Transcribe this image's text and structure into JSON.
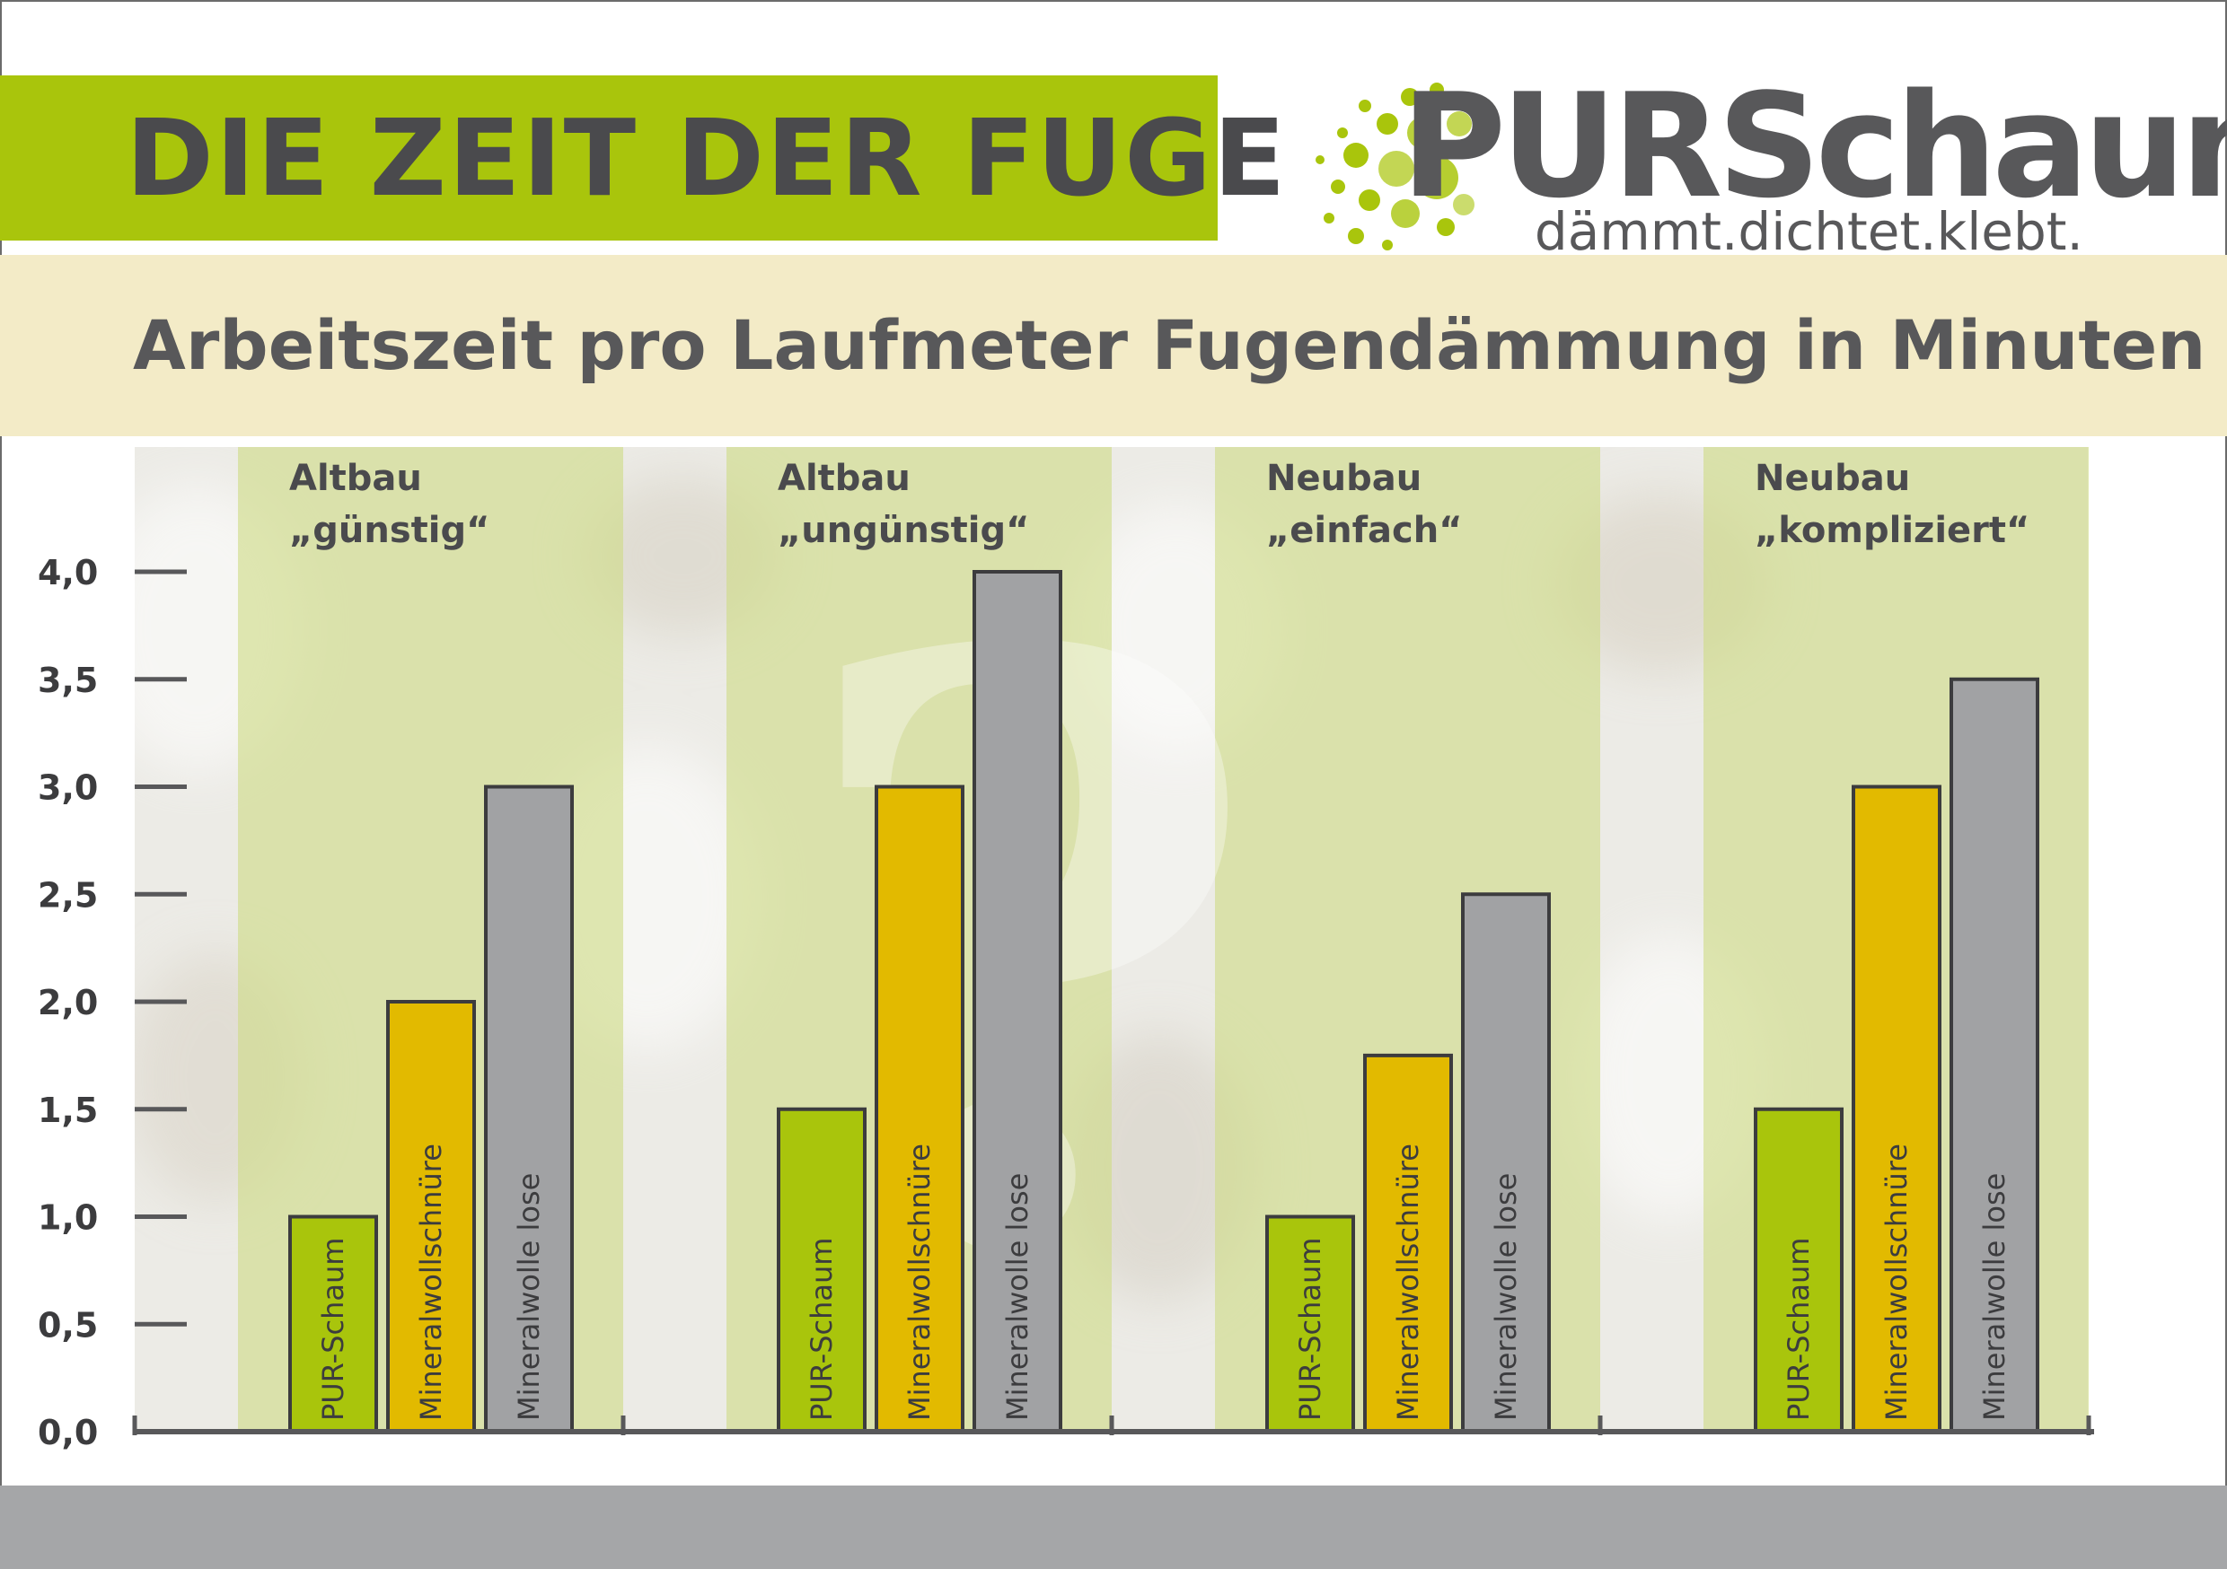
{
  "header": {
    "title": "DIE ZEIT DER FUGE",
    "subtitle": "Arbeitszeit pro Laufmeter Fugendämmung in Minuten"
  },
  "logo": {
    "word_part1": "PUR",
    "word_part2": "Schaum",
    "tagline": "dämmt.dichtet.klebt."
  },
  "colors": {
    "brand_green": "#a9c50c",
    "cream": "#f3ebc7",
    "gray_band": "#a5a6a8",
    "series_pur": "#a9c50c",
    "series_mineral_schnuere": "#e2ba00",
    "series_mineral_lose": "#a1a2a4",
    "axis": "#58585a"
  },
  "chart_data": {
    "type": "bar",
    "title": "Arbeitszeit pro Laufmeter Fugendämmung in Minuten",
    "categories": [
      [
        "Altbau",
        "„günstig“"
      ],
      [
        "Altbau",
        "„ungünstig“"
      ],
      [
        "Neubau",
        "„einfach“"
      ],
      [
        "Neubau",
        "„kompliziert“"
      ]
    ],
    "series": [
      {
        "name": "PUR-Schaum",
        "values": [
          1.0,
          1.5,
          1.0,
          1.5
        ]
      },
      {
        "name": "Mineralwollschnüre",
        "values": [
          2.0,
          3.0,
          1.75,
          3.0
        ]
      },
      {
        "name": "Mineralwolle lose",
        "values": [
          3.0,
          4.0,
          2.5,
          3.5
        ]
      }
    ],
    "ylim": [
      0,
      4
    ],
    "yticks": [
      "0,0",
      "0,5",
      "1,0",
      "1,5",
      "2,0",
      "2,5",
      "3,0",
      "3,5",
      "4,0"
    ],
    "ytick_values": [
      0,
      0.5,
      1.0,
      1.5,
      2.0,
      2.5,
      3.0,
      3.5,
      4.0
    ],
    "legend": "labels inside bars",
    "grid": false
  }
}
